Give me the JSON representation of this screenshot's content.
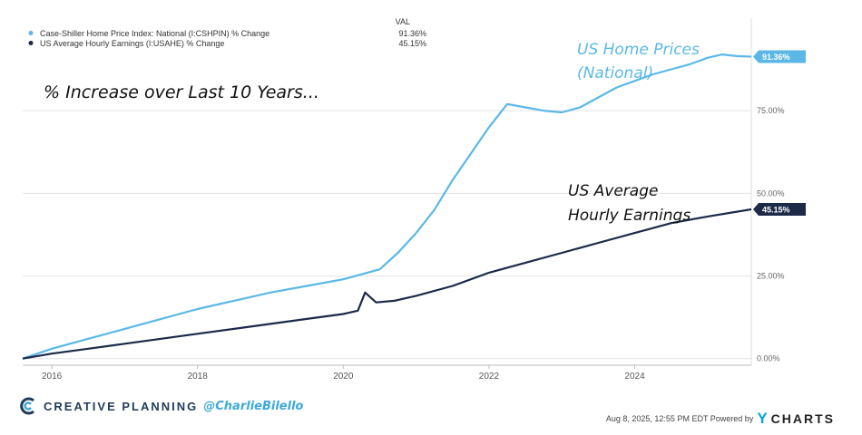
{
  "chart_data": {
    "type": "line",
    "legend": {
      "header": "VAL",
      "placement": "top-left",
      "entries": [
        {
          "label": "Case-Shiller Home Price Index: National (I:CSHPIN) % Change",
          "value": "91.36%"
        },
        {
          "label": "US Average Hourly Earnings (I:USAHE) % Change",
          "value": "45.15%"
        }
      ]
    },
    "annotations": {
      "main": "% Increase over Last 10 Years...",
      "home_line1": "US Home Prices",
      "home_line2": "(National)",
      "earn_line1": "US Average",
      "earn_line2": "Hourly Earnings"
    },
    "x_ticks": [
      "2016",
      "2018",
      "2020",
      "2022",
      "2024"
    ],
    "xlim": [
      2015.6,
      2025.6
    ],
    "y_ticks": [
      "0.00%",
      "25.00%",
      "50.00%",
      "75.00%"
    ],
    "ylim": [
      -2,
      103
    ],
    "grid": true,
    "series": [
      {
        "name": "Case-Shiller Home Price Index: National (I:CSHPIN) % Change",
        "color": "#5bb8e6",
        "end_label": "91.36%",
        "x": [
          2015.6,
          2016.0,
          2016.5,
          2017.0,
          2017.5,
          2018.0,
          2018.5,
          2019.0,
          2019.5,
          2020.0,
          2020.25,
          2020.5,
          2020.75,
          2021.0,
          2021.25,
          2021.5,
          2021.75,
          2022.0,
          2022.25,
          2022.5,
          2022.75,
          2023.0,
          2023.25,
          2023.5,
          2023.75,
          2024.0,
          2024.25,
          2024.5,
          2024.75,
          2025.0,
          2025.2,
          2025.4,
          2025.6
        ],
        "values": [
          0,
          3,
          6,
          9,
          12,
          15,
          17.5,
          20,
          22,
          24,
          25.5,
          27,
          32,
          38,
          45,
          54,
          62,
          70,
          77,
          76,
          75,
          74.5,
          76,
          79,
          82,
          84,
          86,
          87.5,
          89,
          91,
          92,
          91.5,
          91.36
        ]
      },
      {
        "name": "US Average Hourly Earnings (I:USAHE) % Change",
        "color": "#1c2a48",
        "end_label": "45.15%",
        "x": [
          2015.6,
          2016.0,
          2016.5,
          2017.0,
          2017.5,
          2018.0,
          2018.5,
          2019.0,
          2019.5,
          2020.0,
          2020.2,
          2020.3,
          2020.45,
          2020.7,
          2021.0,
          2021.5,
          2022.0,
          2022.5,
          2023.0,
          2023.5,
          2024.0,
          2024.5,
          2025.0,
          2025.6
        ],
        "values": [
          0,
          1.5,
          3,
          4.5,
          6,
          7.5,
          9,
          10.5,
          12,
          13.5,
          14.5,
          20,
          17,
          17.5,
          19,
          22,
          26,
          29,
          32,
          35,
          38,
          41,
          43,
          45.15
        ]
      }
    ]
  },
  "footer": {
    "brand": "CREATIVE PLANNING",
    "handle": "@CharlieBilello",
    "timestamp": "Aug 8, 2025, 12:55 PM EDT Powered by",
    "ycharts": "CHARTS",
    "ycharts_y": "Y"
  }
}
